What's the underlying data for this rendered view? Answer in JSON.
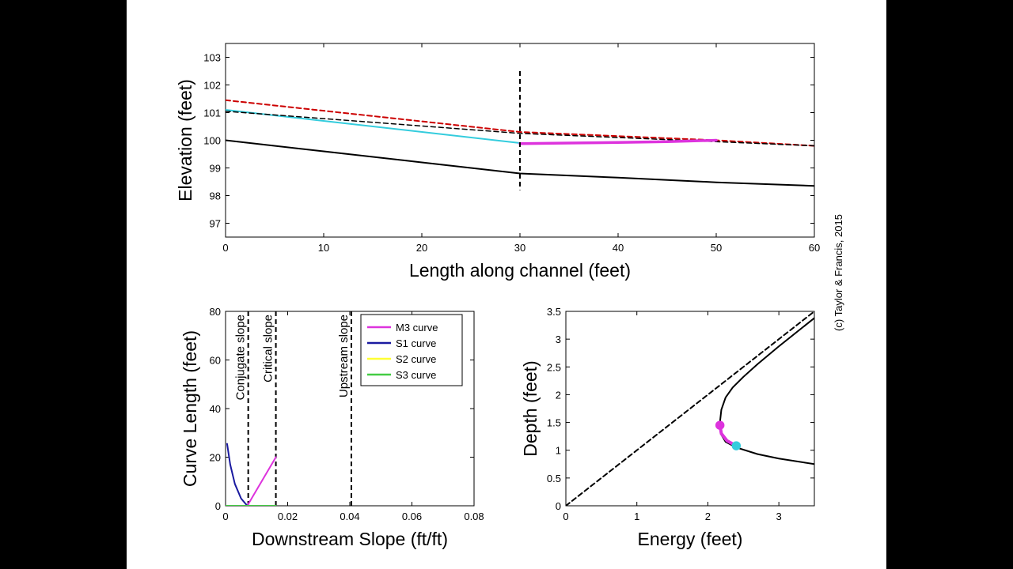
{
  "copyright": "(c) Taylor & Francis, 2015",
  "chart_data": [
    {
      "id": "profile",
      "type": "line",
      "xlabel": "Length along channel (feet)",
      "ylabel": "Elevation (feet)",
      "xlim": [
        0,
        60
      ],
      "ylim": [
        96.5,
        103.5
      ],
      "xticks": [
        0,
        10,
        20,
        30,
        40,
        50,
        60
      ],
      "yticks": [
        97,
        98,
        99,
        100,
        101,
        102,
        103
      ],
      "vline": {
        "x": 30,
        "y0": 98.2,
        "y1": 102.5,
        "style": "dashed",
        "color": "#000000"
      },
      "series": [
        {
          "x": [
            0,
            10,
            20,
            30,
            40,
            50,
            60
          ],
          "y": [
            100.0,
            99.6,
            99.2,
            98.8,
            98.65,
            98.48,
            98.35
          ],
          "color": "#000000",
          "style": "solid",
          "width": 2
        },
        {
          "x": [
            0,
            30,
            40,
            50,
            60
          ],
          "y": [
            101.45,
            100.3,
            100.15,
            100.0,
            99.8
          ],
          "color": "#cc0000",
          "style": "dashed",
          "width": 2
        },
        {
          "x": [
            0,
            30
          ],
          "y": [
            101.1,
            99.9
          ],
          "color": "#33ccdd",
          "style": "solid",
          "width": 2
        },
        {
          "x": [
            0,
            30,
            40,
            50,
            60
          ],
          "y": [
            101.05,
            100.25,
            100.1,
            99.95,
            99.8
          ],
          "color": "#000000",
          "style": "dashed",
          "width": 1.5
        },
        {
          "x": [
            30,
            35,
            40,
            45,
            50
          ],
          "y": [
            99.88,
            99.9,
            99.92,
            99.95,
            100.0
          ],
          "color": "#dd33dd",
          "style": "solid",
          "width": 3.5
        }
      ]
    },
    {
      "id": "curve-length",
      "type": "line",
      "xlabel": "Downstream Slope (ft/ft)",
      "ylabel": "Curve Length (feet)",
      "xlim": [
        0,
        0.08
      ],
      "ylim": [
        0,
        80
      ],
      "xticks": [
        0,
        0.02,
        0.04,
        0.06,
        0.08
      ],
      "xtick_labels": [
        "0",
        "0.02",
        "0.04",
        "0.06",
        "0.08"
      ],
      "yticks": [
        0,
        20,
        40,
        60,
        80
      ],
      "legend": {
        "position": "top-right",
        "entries": [
          {
            "name": "M3 curve",
            "color": "#dd33dd"
          },
          {
            "name": "S1 curve",
            "color": "#1a1aa0"
          },
          {
            "name": "S2 curve",
            "color": "#ffff33"
          },
          {
            "name": "S3 curve",
            "color": "#44cc44"
          }
        ]
      },
      "vlines": [
        {
          "x": 0.0073,
          "label": "Conjugate slope"
        },
        {
          "x": 0.0162,
          "label": "Critical slope"
        },
        {
          "x": 0.0405,
          "label": "Upstream slope"
        }
      ],
      "series": [
        {
          "name": "M3 curve",
          "x": [
            0.007,
            0.0162
          ],
          "y": [
            0,
            20
          ],
          "color": "#dd33dd",
          "width": 2
        },
        {
          "name": "S1 curve",
          "x": [
            0.0005,
            0.0015,
            0.003,
            0.005,
            0.007
          ],
          "y": [
            25.5,
            17,
            9,
            3,
            0
          ],
          "color": "#1a1aa0",
          "width": 2
        },
        {
          "name": "S3 curve",
          "x": [
            0,
            0.0162
          ],
          "y": [
            0,
            0
          ],
          "color": "#44cc44",
          "width": 2
        }
      ]
    },
    {
      "id": "specific-energy",
      "type": "line",
      "xlabel": "Energy (feet)",
      "ylabel": "Depth (feet)",
      "xlim": [
        0,
        3.5
      ],
      "ylim": [
        0,
        3.5
      ],
      "xticks": [
        0,
        1,
        2,
        3
      ],
      "yticks": [
        0,
        0.5,
        1,
        1.5,
        2,
        2.5,
        3,
        3.5
      ],
      "ytick_labels": [
        "0",
        "0.5",
        "1",
        "1.5",
        "2",
        "2.5",
        "3",
        "3.5"
      ],
      "series": [
        {
          "x": [
            0,
            3.5
          ],
          "y": [
            0,
            3.5
          ],
          "color": "#000000",
          "style": "dashed",
          "width": 2
        },
        {
          "x": [
            3.5,
            3.0,
            2.7,
            2.5,
            2.35,
            2.25,
            2.19,
            2.17,
            2.18,
            2.25,
            2.4,
            2.7,
            3.0,
            3.5
          ],
          "y": [
            3.38,
            2.87,
            2.55,
            2.32,
            2.13,
            1.95,
            1.73,
            1.5,
            1.3,
            1.15,
            1.05,
            0.93,
            0.85,
            0.75
          ],
          "color": "#000000",
          "style": "solid",
          "width": 2
        },
        {
          "x": [
            2.17,
            2.19,
            2.27,
            2.4
          ],
          "y": [
            1.45,
            1.3,
            1.17,
            1.08
          ],
          "color": "#dd33dd",
          "style": "solid",
          "width": 4
        }
      ],
      "markers": [
        {
          "x": 2.17,
          "y": 1.45,
          "color": "#dd33dd"
        },
        {
          "x": 2.4,
          "y": 1.08,
          "color": "#33ccdd"
        }
      ]
    }
  ]
}
